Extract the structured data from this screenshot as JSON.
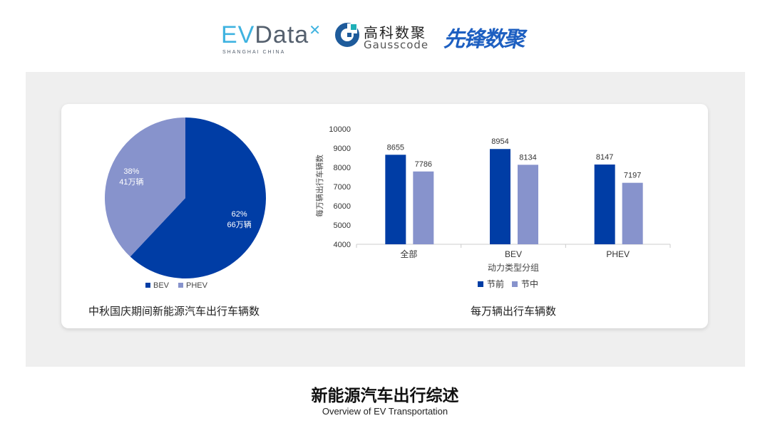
{
  "logos": {
    "evdata": "EVData",
    "evdata_sub": "SHANGHAI CHINA",
    "gauss_cn": "高科数聚",
    "gauss_en": "Gausscode",
    "xianfeng": "先锋数聚"
  },
  "colors": {
    "primary": "#003da5",
    "secondary": "#8793cc"
  },
  "chart_data": [
    {
      "type": "pie",
      "title": "中秋国庆期间新能源汽车出行车辆数",
      "slices": [
        {
          "name": "BEV",
          "percent": 62,
          "value_label": "66万辆"
        },
        {
          "name": "PHEV",
          "percent": 38,
          "value_label": "41万辆"
        }
      ],
      "legend": "bottom"
    },
    {
      "type": "bar",
      "title": "每万辆出行车辆数",
      "xlabel": "动力类型分组",
      "ylabel": "每万辆出行车辆数",
      "categories": [
        "全部",
        "BEV",
        "PHEV"
      ],
      "series": [
        {
          "name": "节前",
          "values": [
            8655,
            8954,
            8147
          ]
        },
        {
          "name": "节中",
          "values": [
            7786,
            8134,
            7197
          ]
        }
      ],
      "ylim": [
        4000,
        10000
      ],
      "yticks": [
        4000,
        5000,
        6000,
        7000,
        8000,
        9000,
        10000
      ],
      "grid": false,
      "legend": "bottom"
    }
  ],
  "footer": {
    "title": "新能源汽车出行综述",
    "subtitle": "Overview of EV Transportation"
  }
}
